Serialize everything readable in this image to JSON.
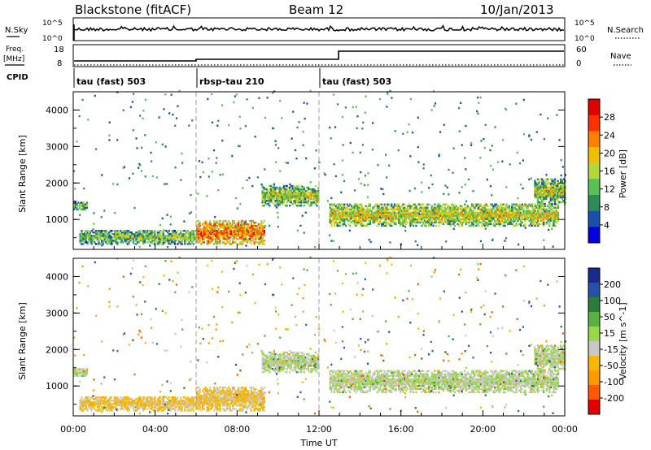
{
  "header": {
    "station": "Blackstone (fitACF)",
    "beam": "Beam 12",
    "date": "10/Jan/2013"
  },
  "left_labels": {
    "nsky": "N.Sky",
    "freq": "Freq.",
    "freq_unit": "[MHz]",
    "cpid": "CPID"
  },
  "right_labels": {
    "nsearch": "N.Search",
    "nave": "Nave"
  },
  "top_axes": {
    "noise_ticks_left": [
      "10^5",
      "10^0"
    ],
    "noise_ticks_right": [
      "10^5",
      "10^0"
    ],
    "freq_ticks": [
      "18",
      "8"
    ],
    "nave_ticks": [
      "60",
      "0"
    ]
  },
  "cpid_segments": [
    {
      "label": "tau (fast) 503",
      "start_hour": 0,
      "end_hour": 6
    },
    {
      "label": "rbsp-tau 210",
      "start_hour": 6,
      "end_hour": 12
    },
    {
      "label": "tau (fast) 503",
      "start_hour": 12,
      "end_hour": 24
    }
  ],
  "colors": {
    "power": [
      "#0000e0",
      "#1a4fb0",
      "#2e8b57",
      "#58c058",
      "#b4d83c",
      "#f0c000",
      "#ff8000",
      "#ff3000",
      "#e00000"
    ],
    "velocity": [
      "#e00000",
      "#ff5a00",
      "#ff9a00",
      "#f8b800",
      "#c8c8c8",
      "#9ad84a",
      "#5ab040",
      "#2e7a3c",
      "#2850a8",
      "#1a2a8c"
    ]
  },
  "chart_data": [
    {
      "type": "heatmap",
      "panel": "power",
      "xlabel": "",
      "ylabel": "Slant Range [km]",
      "xlim": [
        0,
        24
      ],
      "ylim": [
        180,
        4500
      ],
      "yticks": [
        "4000",
        "3000",
        "2000",
        "1000"
      ],
      "colorbar_label": "Power [dB]",
      "colorbar_ticks": [
        "28",
        "24",
        "20",
        "16",
        "12",
        "8",
        "4"
      ],
      "colorbar_range": [
        0,
        32
      ],
      "scatter_regions": [
        {
          "t0": 0.0,
          "t1": 0.7,
          "r0": 1250,
          "r1": 1450,
          "v": 14
        },
        {
          "t0": 0.3,
          "t1": 6.0,
          "r0": 300,
          "r1": 700,
          "v": 14
        },
        {
          "t0": 6.0,
          "t1": 9.3,
          "r0": 300,
          "r1": 950,
          "v": 24
        },
        {
          "t0": 9.2,
          "t1": 12.0,
          "r0": 1350,
          "r1": 1900,
          "v": 16
        },
        {
          "t0": 12.5,
          "t1": 23.7,
          "r0": 800,
          "r1": 1400,
          "v": 18
        },
        {
          "t0": 22.5,
          "t1": 24.0,
          "r0": 1400,
          "r1": 2100,
          "v": 16
        }
      ]
    },
    {
      "type": "heatmap",
      "panel": "velocity",
      "xlabel": "Time UT",
      "ylabel": "Slant Range [km]",
      "xlim": [
        0,
        24
      ],
      "ylim": [
        180,
        4500
      ],
      "xticks": [
        "00:00",
        "04:00",
        "08:00",
        "12:00",
        "16:00",
        "20:00",
        "00:00"
      ],
      "yticks": [
        "4000",
        "3000",
        "2000",
        "1000"
      ],
      "colorbar_label": "Velocity [m s^-1]",
      "colorbar_ticks": [
        "200",
        "100",
        "50",
        "15",
        "-15",
        "-50",
        "-100",
        "-200"
      ],
      "colorbar_range": [
        -250,
        250
      ]
    }
  ]
}
